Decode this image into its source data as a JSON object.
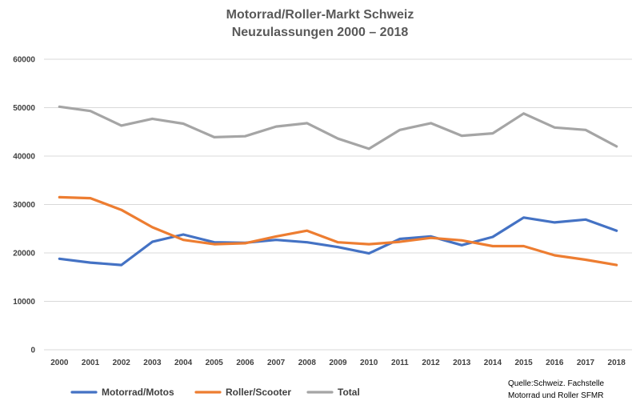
{
  "chart_data": {
    "type": "line",
    "title": "Motorrad/Roller-Markt Schweiz",
    "subtitle": "Neuzulassungen 2000 – 2018",
    "xlabel": "",
    "ylabel": "",
    "ylim": [
      0,
      60000
    ],
    "yticks": [
      "0",
      "10000",
      "20000",
      "30000",
      "40000",
      "50000",
      "60000"
    ],
    "categories": [
      "2000",
      "2001",
      "2002",
      "2003",
      "2004",
      "2005",
      "2006",
      "2007",
      "2008",
      "2009",
      "2010",
      "2011",
      "2012",
      "2013",
      "2014",
      "2015",
      "2016",
      "2017",
      "2018"
    ],
    "grid": "horizontal",
    "legend_position": "bottom-left",
    "series": [
      {
        "name": "Motorrad/Motos",
        "color": "#4472C4",
        "values": [
          18800,
          18000,
          17500,
          22300,
          23800,
          22200,
          22100,
          22700,
          22200,
          21200,
          19900,
          22900,
          23400,
          21600,
          23300,
          27300,
          26300,
          26900,
          24600
        ]
      },
      {
        "name": "Roller/Scooter",
        "color": "#ED7D31",
        "values": [
          31500,
          31300,
          28900,
          25300,
          22700,
          21800,
          22000,
          23400,
          24600,
          22200,
          21800,
          22300,
          23100,
          22600,
          21400,
          21400,
          19500,
          18600,
          17500
        ]
      },
      {
        "name": "Total",
        "color": "#A5A5A5",
        "values": [
          50200,
          49300,
          46300,
          47700,
          46700,
          43900,
          44100,
          46100,
          46800,
          43600,
          41500,
          45400,
          46800,
          44200,
          44700,
          48800,
          45900,
          45400,
          42000
        ]
      }
    ],
    "source_lines": [
      "Quelle:Schweiz. Fachstelle",
      "Motorrad und Roller SFMR"
    ]
  }
}
